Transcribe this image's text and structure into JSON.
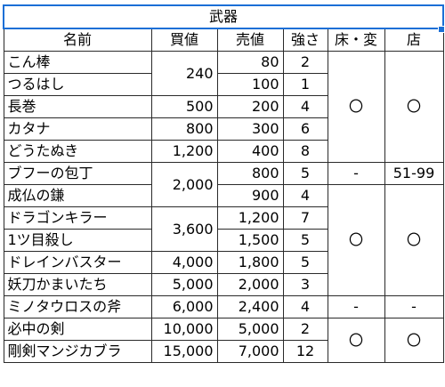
{
  "title": "武器",
  "headers": {
    "name": "名前",
    "buy": "買値",
    "sell": "売値",
    "strength": "強さ",
    "floor_change": "床・変",
    "shop": "店"
  },
  "rows": [
    {
      "name": "こん棒",
      "buy": "240",
      "sell": "80",
      "strength": "2",
      "floor": "〇",
      "shop": "〇"
    },
    {
      "name": "つるはし",
      "sell": "100",
      "strength": "1"
    },
    {
      "name": "長巻",
      "buy": "500",
      "sell": "200",
      "strength": "4"
    },
    {
      "name": "カタナ",
      "buy": "800",
      "sell": "300",
      "strength": "6"
    },
    {
      "name": "どうたぬき",
      "buy": "1,200",
      "sell": "400",
      "strength": "8"
    },
    {
      "name": "ブフーの包丁",
      "buy": "2,000",
      "sell": "800",
      "strength": "5",
      "floor": "-",
      "shop": "51-99"
    },
    {
      "name": "成仏の鎌",
      "sell": "900",
      "strength": "4",
      "floor": "〇",
      "shop": "〇"
    },
    {
      "name": "ドラゴンキラー",
      "buy": "3,600",
      "sell": "1,200",
      "strength": "7"
    },
    {
      "name": "1ツ目殺し",
      "sell": "1,500",
      "strength": "5"
    },
    {
      "name": "ドレインバスター",
      "buy": "4,000",
      "sell": "1,800",
      "strength": "5"
    },
    {
      "name": "妖刀かまいたち",
      "buy": "5,000",
      "sell": "2,000",
      "strength": "3"
    },
    {
      "name": "ミノタウロスの斧",
      "buy": "6,000",
      "sell": "2,400",
      "strength": "4",
      "floor": "-",
      "shop": "-"
    },
    {
      "name": "必中の剣",
      "buy": "10,000",
      "sell": "5,000",
      "strength": "2",
      "floor": "〇",
      "shop": "〇"
    },
    {
      "name": "剛剣マンジカブラ",
      "buy": "15,000",
      "sell": "7,000",
      "strength": "12"
    }
  ]
}
